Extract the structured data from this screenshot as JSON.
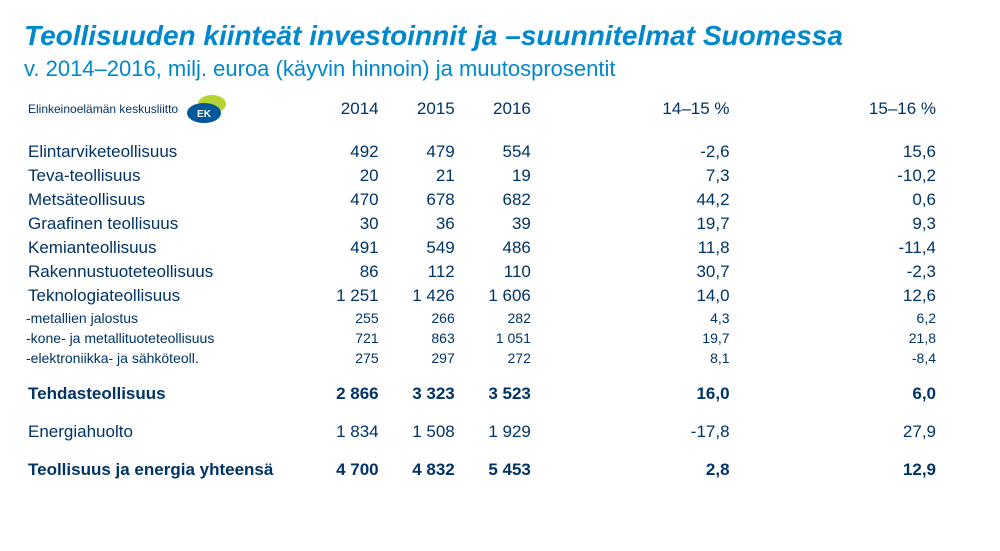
{
  "title": "Teollisuuden kiinteät investoinnit ja –suunnitelmat Suomessa",
  "subtitle": "v. 2014–2016, milj. euroa (käyvin hinnoin) ja muutosprosentit",
  "logo_text": "Elinkeinoelämän keskusliitto",
  "logo_letters": "EK",
  "colors": {
    "title": "#0088cc",
    "text": "#003366",
    "logo_green": "#b6d433",
    "logo_blue": "#005799",
    "background": "#ffffff"
  },
  "columns": {
    "y2014": "2014",
    "y2015": "2015",
    "y2016": "2016",
    "pct1": "14–15 %",
    "pct2": "15–16 %"
  },
  "rows": [
    {
      "kind": "normal",
      "label": "Elintarviketeollisuus",
      "v2014": "492",
      "v2015": "479",
      "v2016": "554",
      "p1": "-2,6",
      "p2": "15,6"
    },
    {
      "kind": "normal",
      "label": "Teva-teollisuus",
      "v2014": "20",
      "v2015": "21",
      "v2016": "19",
      "p1": "7,3",
      "p2": "-10,2"
    },
    {
      "kind": "normal",
      "label": "Metsäteollisuus",
      "v2014": "470",
      "v2015": "678",
      "v2016": "682",
      "p1": "44,2",
      "p2": "0,6"
    },
    {
      "kind": "normal",
      "label": "Graafinen teollisuus",
      "v2014": "30",
      "v2015": "36",
      "v2016": "39",
      "p1": "19,7",
      "p2": "9,3"
    },
    {
      "kind": "normal",
      "label": "Kemianteollisuus",
      "v2014": "491",
      "v2015": "549",
      "v2016": "486",
      "p1": "11,8",
      "p2": "-11,4"
    },
    {
      "kind": "normal",
      "label": "Rakennustuoteteollisuus",
      "v2014": "86",
      "v2015": "112",
      "v2016": "110",
      "p1": "30,7",
      "p2": "-2,3"
    },
    {
      "kind": "normal",
      "label": "Teknologiateollisuus",
      "v2014": "1 251",
      "v2015": "1 426",
      "v2016": "1 606",
      "p1": "14,0",
      "p2": "12,6"
    },
    {
      "kind": "sub",
      "label": "-metallien jalostus",
      "v2014": "255",
      "v2015": "266",
      "v2016": "282",
      "p1": "4,3",
      "p2": "6,2"
    },
    {
      "kind": "sub",
      "label": "-kone- ja metallituoteteollisuus",
      "v2014": "721",
      "v2015": "863",
      "v2016": "1 051",
      "p1": "19,7",
      "p2": "21,8"
    },
    {
      "kind": "sub",
      "label": "-elektroniikka- ja sähköteoll.",
      "v2014": "275",
      "v2015": "297",
      "v2016": "272",
      "p1": "8,1",
      "p2": "-8,4"
    },
    {
      "kind": "spacer"
    },
    {
      "kind": "bold",
      "label": "Tehdasteollisuus",
      "v2014": "2 866",
      "v2015": "3 323",
      "v2016": "3 523",
      "p1": "16,0",
      "p2": "6,0"
    },
    {
      "kind": "spacer"
    },
    {
      "kind": "normal",
      "label": "Energiahuolto",
      "v2014": "1 834",
      "v2015": "1 508",
      "v2016": "1 929",
      "p1": "-17,8",
      "p2": "27,9"
    },
    {
      "kind": "spacer"
    },
    {
      "kind": "bold",
      "label": "Teollisuus ja energia yhteensä",
      "v2014": "4 700",
      "v2015": "4 832",
      "v2016": "5 453",
      "p1": "2,8",
      "p2": "12,9"
    }
  ]
}
